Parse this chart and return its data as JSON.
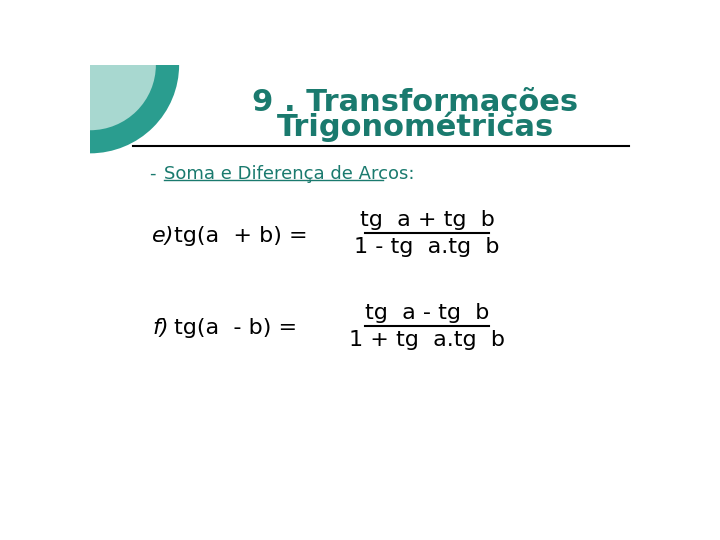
{
  "title_line1": "9 . Transformações",
  "title_line2": "Trigonométricas",
  "title_color": "#1a7a6e",
  "subtitle_prefix": "- ",
  "subtitle_text": "Soma e Diferença de Arcos:",
  "subtitle_color": "#1a7a6e",
  "background_color": "#ffffff",
  "formula_e_label": "e)",
  "formula_e_left": "tg(a  + b) =",
  "formula_e_num": "tg  a + tg  b",
  "formula_e_den": "1 - tg  a.tg  b",
  "formula_f_label": "f)",
  "formula_f_left": "tg(a  - b) =",
  "formula_f_num": "tg  a - tg  b",
  "formula_f_den": "1 + tg  a.tg  b",
  "text_color": "#000000",
  "line_color": "#000000",
  "circle_color_outer": "#2a9d8f",
  "circle_color_inner": "#a8d8d0",
  "fig_width": 7.2,
  "fig_height": 5.4,
  "dpi": 100
}
